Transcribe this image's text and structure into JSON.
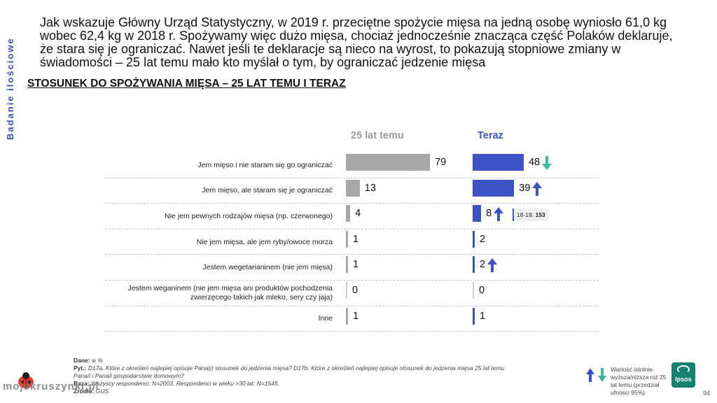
{
  "sidebar": {
    "label": "Badanie ilościowe"
  },
  "intro": {
    "lines": [
      "Jak wskazuje Główny Urząd Statystyczny, w 2019 r. przeciętne spożycie mięsa na jedną osobę wyniosło 61,0 kg",
      "wobec 62,4 kg w 2018 r. Spożywamy więc dużo mięsa, chociaż jednocześnie znacząca część Polaków deklaruje,",
      "że stara się je ograniczać. Nawet jeśli te deklaracje są nieco na wyrost, to pokazują stopniowe zmiany w",
      "świadomości – 25 lat temu mało kto myślał o tym, by ograniczać jedzenie mięsa"
    ]
  },
  "section_title": "STOSUNEK DO SPOŻYWANIA MIĘSA – 25 LAT TEMU I TERAZ",
  "chart_data": {
    "type": "bar",
    "orientation": "horizontal",
    "title": "STOSUNEK DO SPOŻYWANIA MIĘSA – 25 LAT TEMU I TERAZ",
    "categories": [
      "Jem mięso i nie staram się go ograniczać",
      "Jem mięso, ale staram się je ograniczać",
      "Nie jem pewnych rodzajów mięsa (np. czerwonego)",
      "Nie jem mięsa, ale jem ryby/owoce morza",
      "Jestem wegetarianinem (nie jem mięsa)",
      "Jestem weganinem (nie jem mięsa ani produktów pochodzenia zwierzęcego takich jak mleko, sery czy jaja)",
      "Inne"
    ],
    "series": [
      {
        "name": "25 lat temu",
        "color": "#a8a8a8",
        "values": [
          79,
          13,
          4,
          1,
          1,
          0,
          1
        ],
        "significance": [
          null,
          null,
          null,
          null,
          null,
          null,
          null
        ]
      },
      {
        "name": "Teraz",
        "color": "#3d52c4",
        "values": [
          48,
          39,
          8,
          2,
          2,
          0,
          1
        ],
        "significance": [
          "down",
          "up",
          "up",
          null,
          "up",
          null,
          null
        ]
      }
    ],
    "xlim": [
      0,
      100
    ],
    "annotation": {
      "row": 2,
      "label": "18-19:",
      "value": "153"
    }
  },
  "colors": {
    "significance_up": "#3d52c4",
    "significance_down": "#39b9a0"
  },
  "notes": {
    "data_label": "Dane:",
    "data_value": "w %",
    "question_label": "Pyt.:",
    "question_value": "D17a. Które z określeń najlepiej opisuje Pana(i) stosunek do jedzenia mięsa? D17b. Które z określeń najlepiej opisuje stosunek do jedzenia mięsa 25 lat temu",
    "question_cont": "Pana/i i Pana/i gospodarstwie domowym?",
    "base_label": "Baza:",
    "base_value": "Wszyscy respondenci: N=2003, Respondenci w wieku >30 lat: N=1545.",
    "source_label": "Źródło:",
    "source_value": "GUS."
  },
  "legend": {
    "text": "Wartość istotnie wyższa/niższa niż 25 lat temu (przedział ufności 95%)"
  },
  "logo": {
    "text": "Ipsos"
  },
  "page_number": "94",
  "watermark": {
    "text": "mojekruszynki.pl"
  }
}
